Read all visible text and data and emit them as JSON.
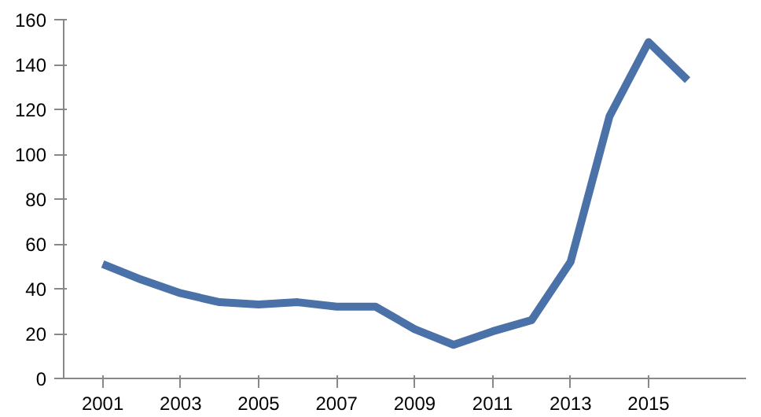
{
  "chart_data": {
    "type": "line",
    "x": [
      2001,
      2002,
      2003,
      2004,
      2005,
      2006,
      2007,
      2008,
      2009,
      2010,
      2011,
      2012,
      2013,
      2014,
      2015,
      2016
    ],
    "series": [
      {
        "color": "#4a72a8",
        "values": [
          51,
          44,
          38,
          34,
          33,
          34,
          32,
          32,
          22,
          15,
          21,
          26,
          52,
          117,
          150,
          133
        ]
      }
    ],
    "xlim": [
      2000,
      2017.5
    ],
    "xticks": [
      2001,
      2003,
      2005,
      2007,
      2009,
      2011,
      2013,
      2015
    ],
    "ylim": [
      0,
      160
    ],
    "yticks": [
      0,
      20,
      40,
      60,
      80,
      100,
      120,
      140,
      160
    ],
    "grid": false,
    "marker": "none",
    "line_style": "solid"
  }
}
